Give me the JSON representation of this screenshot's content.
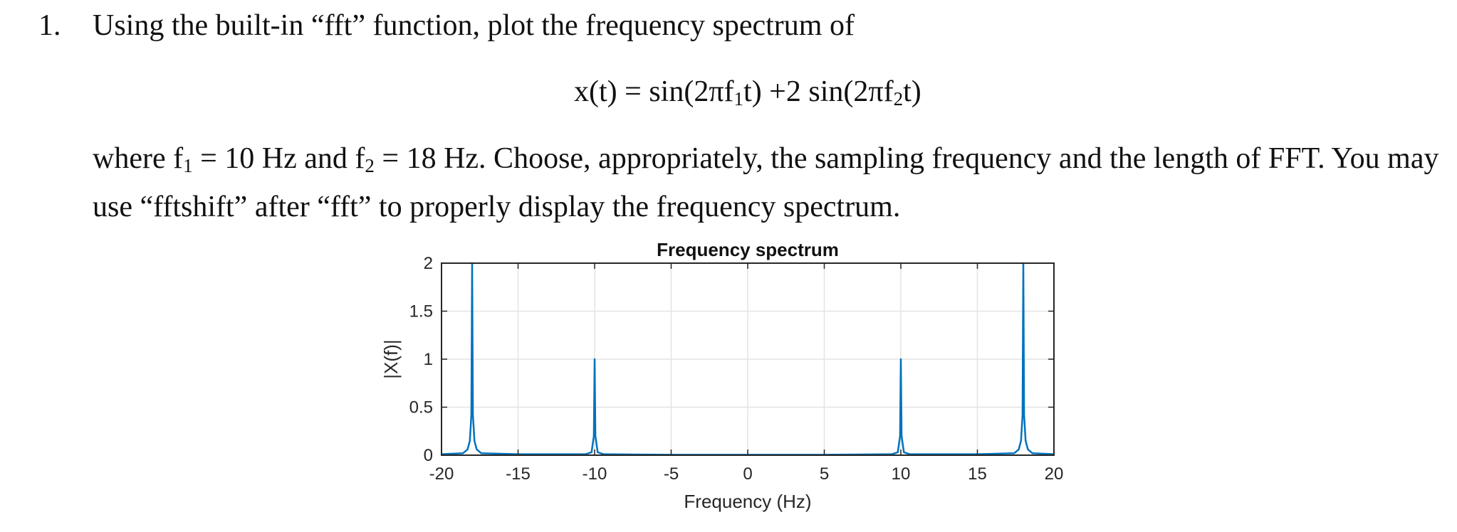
{
  "question": {
    "number": "1.",
    "text": "Using the built-in “fft” function, plot the frequency spectrum of"
  },
  "equation": {
    "lhs": "x(t) = sin(2πf",
    "sub1": "1",
    "mid": "t) +2 sin(2πf",
    "sub2": "2",
    "end": "t)"
  },
  "paragraph": {
    "p1": "where f",
    "s1": "1",
    "p2": " = 10 Hz and f",
    "s2": "2",
    "p3": " = 18 Hz. Choose, appropriately, the sampling frequency and the length of FFT. You may use “fftshift” after “fft” to properly display the frequency spectrum."
  },
  "colors": {
    "series": "#0072BD",
    "grid": "#e4e4e4",
    "axis": "#262626"
  },
  "chart_data": {
    "type": "line",
    "title": "Frequency spectrum",
    "xlabel": "Frequency (Hz)",
    "ylabel": "|X(f)|",
    "xlim": [
      -20,
      20
    ],
    "ylim": [
      0,
      2
    ],
    "xticks": [
      -20,
      -15,
      -10,
      -5,
      0,
      5,
      10,
      15,
      20
    ],
    "xtick_labels": [
      "-20",
      "-15",
      "-10",
      "-5",
      "0",
      "5",
      "10",
      "15",
      "20"
    ],
    "yticks": [
      0,
      0.5,
      1,
      1.5,
      2
    ],
    "ytick_labels": [
      "0",
      "0.5",
      "1",
      "1.5",
      "2"
    ],
    "grid": true,
    "series": [
      {
        "x": [
          -20,
          -18.6,
          -18.3,
          -18.15,
          -18.05,
          -18,
          -17.95,
          -17.85,
          -17.7,
          -17.4,
          -15,
          -10.6,
          -10.2,
          -10.05,
          -10,
          -9.95,
          -9.8,
          -9.4,
          -5,
          0,
          5,
          9.4,
          9.8,
          9.95,
          10,
          10.05,
          10.2,
          10.6,
          15,
          17.4,
          17.7,
          17.85,
          17.95,
          18,
          18.05,
          18.15,
          18.3,
          18.6,
          20
        ],
        "y": [
          0.01,
          0.02,
          0.06,
          0.15,
          0.42,
          2.0,
          0.42,
          0.15,
          0.06,
          0.02,
          0.01,
          0.01,
          0.03,
          0.2,
          1.0,
          0.2,
          0.03,
          0.01,
          0.005,
          0.005,
          0.005,
          0.01,
          0.03,
          0.2,
          1.0,
          0.2,
          0.03,
          0.01,
          0.01,
          0.02,
          0.06,
          0.15,
          0.42,
          2.0,
          0.42,
          0.15,
          0.06,
          0.02,
          0.01
        ]
      }
    ]
  }
}
